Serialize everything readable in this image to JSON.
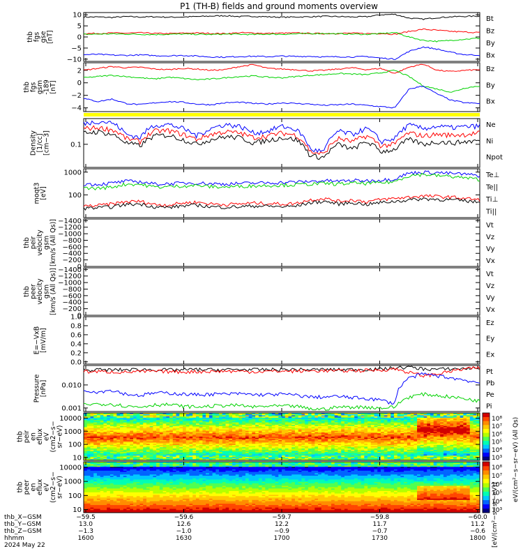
{
  "title": "P1 (TH-B) fields and ground moments overview",
  "colors": {
    "black": "#000000",
    "red": "#ff0000",
    "green": "#00d200",
    "blue": "#0000ff",
    "yellow": "#ffff00"
  },
  "chart_data": [
    {
      "type": "line",
      "panel": "fgs-gse",
      "ylabel": [
        "thb",
        "fgs",
        "gse",
        "[nT]"
      ],
      "ylim": [
        -11,
        11
      ],
      "yticks": [
        "10",
        "5",
        "0",
        "−5",
        "−10"
      ],
      "series": [
        {
          "name": "Bt",
          "color": "black",
          "values": [
            9,
            9,
            8.8,
            9.2,
            9,
            9.1,
            8.9,
            9,
            9.2,
            9.4,
            9.6,
            9.2,
            9.3,
            9.1,
            8.9,
            9,
            9.1,
            9.3,
            9.2,
            9,
            9.1,
            10,
            10.2,
            8.5,
            8,
            8.7,
            9.1,
            9.3,
            9.4
          ]
        },
        {
          "name": "Bz",
          "color": "red",
          "values": [
            1.5,
            1.6,
            1.8,
            1.7,
            1.9,
            1.6,
            1.5,
            1.7,
            1.8,
            1.6,
            1.5,
            1.9,
            1.8,
            1.6,
            1.7,
            1.8,
            1.6,
            1.5,
            1.6,
            1.7,
            1.5,
            1.6,
            1.2,
            2.5,
            3.5,
            3,
            2.5,
            2.2,
            2
          ]
        },
        {
          "name": "By",
          "color": "green",
          "values": [
            1.2,
            1.3,
            1.4,
            1.3,
            1.2,
            1.1,
            1.2,
            1.3,
            1.2,
            1.1,
            1.3,
            1.2,
            1.1,
            1.3,
            1.2,
            1.4,
            1.5,
            1.6,
            1.4,
            1.3,
            1.2,
            1.5,
            2,
            0,
            -1.5,
            -2,
            -1.5,
            -1,
            -0.5
          ]
        },
        {
          "name": "Bx",
          "color": "blue",
          "values": [
            -8,
            -7.8,
            -8.2,
            -8.3,
            -8.1,
            -8.4,
            -8.5,
            -8.3,
            -8.6,
            -9,
            -9.1,
            -8.8,
            -8.7,
            -8.9,
            -8.6,
            -8.8,
            -8.7,
            -9,
            -8.9,
            -9,
            -8.8,
            -9.5,
            -10,
            -6.5,
            -4.5,
            -5.5,
            -7,
            -8,
            -8.2
          ]
        }
      ]
    },
    {
      "type": "line",
      "panel": "fgs-gsm",
      "ylabel": [
        "thb",
        "fgs",
        "gsm",
        "-189",
        "[nT]"
      ],
      "ylim": [
        -4.6,
        3.2
      ],
      "yticks": [
        "2",
        "0",
        "−2",
        "−4"
      ],
      "series": [
        {
          "name": "Bz",
          "color": "red",
          "values": [
            2,
            2.3,
            2.6,
            2.4,
            2.5,
            2.2,
            2.1,
            2.3,
            2.2,
            2.0,
            2.1,
            2.6,
            2.9,
            2.3,
            2.2,
            2.1,
            1.9,
            2.0,
            2.2,
            2.4,
            2.1,
            2.3,
            1.5,
            2.5,
            3.0,
            2.0,
            1.8,
            2.0,
            2.1
          ]
        },
        {
          "name": "By",
          "color": "green",
          "values": [
            0.8,
            1.0,
            1.2,
            1.0,
            0.8,
            0.6,
            0.9,
            0.7,
            0.5,
            0.6,
            0.8,
            1.0,
            1.1,
            0.9,
            0.8,
            1.0,
            1.2,
            1.3,
            1.5,
            1.4,
            1.3,
            1.6,
            2.0,
            1.0,
            -0.5,
            -1.0,
            -1.5,
            -0.8,
            -0.5
          ]
        },
        {
          "name": "Bx",
          "color": "blue",
          "values": [
            -2.5,
            -3.0,
            -2.6,
            -3.3,
            -3.5,
            -3.2,
            -3.0,
            -3.1,
            -3.4,
            -3.5,
            -3.2,
            -3.1,
            -3.3,
            -3.4,
            -3.2,
            -3.3,
            -3.4,
            -3.6,
            -3.5,
            -3.4,
            -3.6,
            -3.8,
            -4.0,
            -1.0,
            -0.5,
            -1.8,
            -2.8,
            -3.2,
            -3.3
          ]
        }
      ]
    },
    {
      "type": "line",
      "panel": "density",
      "ylabel": [
        "Density",
        "[1/cc]",
        "[cm−3]"
      ],
      "ylog": true,
      "ylim": [
        0.02,
        0.6
      ],
      "yticks": [
        "0.1"
      ],
      "series": [
        {
          "name": "Ne",
          "color": "red",
          "values": [
            0.3,
            0.32,
            0.28,
            0.15,
            0.12,
            0.25,
            0.26,
            0.2,
            0.14,
            0.2,
            0.24,
            0.22,
            0.16,
            0.18,
            0.22,
            0.19,
            0.06,
            0.05,
            0.15,
            0.12,
            0.18,
            0.09,
            0.1,
            0.22,
            0.18,
            0.2,
            0.19,
            0.2,
            0.22
          ]
        },
        {
          "name": "Ni",
          "color": "black",
          "values": [
            0.22,
            0.24,
            0.2,
            0.11,
            0.09,
            0.18,
            0.19,
            0.14,
            0.1,
            0.14,
            0.17,
            0.16,
            0.11,
            0.13,
            0.16,
            0.14,
            0.045,
            0.04,
            0.1,
            0.07,
            0.12,
            0.06,
            0.07,
            0.14,
            0.1,
            0.12,
            0.11,
            0.12,
            0.13
          ]
        },
        {
          "name": "Npot",
          "color": "blue",
          "values": [
            0.42,
            0.5,
            0.45,
            0.2,
            0.16,
            0.38,
            0.4,
            0.3,
            0.18,
            0.3,
            0.4,
            0.35,
            0.22,
            0.25,
            0.35,
            0.28,
            0.07,
            0.06,
            0.25,
            0.2,
            0.3,
            0.12,
            0.15,
            0.38,
            0.3,
            0.35,
            0.32,
            0.34,
            0.36
          ]
        }
      ]
    },
    {
      "type": "line",
      "panel": "temperature",
      "ylabel": [
        "moqt3",
        "[eV]"
      ],
      "ylog": true,
      "ylim": [
        10,
        1400
      ],
      "yticks": [
        "1000",
        "100"
      ],
      "series": [
        {
          "name": "Te⊥",
          "color": "red",
          "values": [
            32,
            34,
            40,
            50,
            52,
            38,
            36,
            44,
            48,
            40,
            38,
            40,
            44,
            42,
            40,
            42,
            60,
            70,
            52,
            60,
            50,
            62,
            70,
            80,
            90,
            85,
            80,
            70,
            60
          ]
        },
        {
          "name": "Te||",
          "color": "black",
          "values": [
            26,
            27,
            30,
            38,
            40,
            30,
            28,
            33,
            36,
            30,
            29,
            30,
            33,
            32,
            30,
            32,
            45,
            52,
            40,
            46,
            38,
            46,
            52,
            60,
            68,
            64,
            60,
            55,
            48
          ]
        },
        {
          "name": "Ti⊥",
          "color": "blue",
          "values": [
            300,
            290,
            330,
            400,
            380,
            300,
            310,
            330,
            340,
            310,
            300,
            320,
            330,
            340,
            350,
            370,
            390,
            420,
            400,
            430,
            420,
            450,
            500,
            900,
            1000,
            950,
            880,
            800,
            700
          ]
        },
        {
          "name": "Ti||",
          "color": "green",
          "values": [
            200,
            195,
            220,
            300,
            290,
            220,
            230,
            250,
            260,
            230,
            220,
            240,
            250,
            260,
            270,
            280,
            300,
            320,
            300,
            330,
            320,
            340,
            380,
            700,
            800,
            700,
            650,
            550,
            480
          ]
        }
      ]
    },
    {
      "type": "line",
      "panel": "peir-velocity",
      "ylabel": [
        "thb",
        "peir",
        "velocity",
        "gsm",
        "[km/s (All Qs)]"
      ],
      "ylim": [
        0,
        -1450
      ],
      "yticks": [
        "0",
        "−200",
        "−400",
        "−600",
        "−800",
        "−1000",
        "−1200",
        "−1400"
      ],
      "legend": [
        "Vt",
        "Vz",
        "Vy",
        "Vx"
      ]
    },
    {
      "type": "line",
      "panel": "peer-velocity",
      "ylabel": [
        "thb",
        "peer",
        "velocity",
        "gsm",
        "[km/s (All Qs)]"
      ],
      "ylim": [
        0,
        -1450
      ],
      "yticks": [
        "0",
        "−200",
        "−400",
        "−600",
        "−800",
        "−1000",
        "−1200",
        "−1400"
      ],
      "legend": [
        "Vt",
        "Vz",
        "Vy",
        "Vx"
      ]
    },
    {
      "type": "line",
      "panel": "efield",
      "ylabel": [
        "E=−VxB",
        "[mV/m]"
      ],
      "ylim": [
        -0.05,
        1.0
      ],
      "yticks": [
        "1.0",
        "0.8",
        "0.6",
        "0.4",
        "0.2",
        "0.0"
      ],
      "legend": [
        "Ez",
        "Ey",
        "Ex"
      ]
    },
    {
      "type": "line",
      "panel": "pressure",
      "ylabel": [
        "Pressure",
        "[nPa]"
      ],
      "ylog": true,
      "ylim": [
        0.0007,
        0.07
      ],
      "yticks": [
        "0.010",
        "0.001"
      ],
      "series": [
        {
          "name": "Pt",
          "color": "black",
          "values": [
            0.045,
            0.046,
            0.045,
            0.046,
            0.047,
            0.046,
            0.045,
            0.046,
            0.047,
            0.046,
            0.046,
            0.047,
            0.046,
            0.046,
            0.047,
            0.047,
            0.046,
            0.047,
            0.046,
            0.047,
            0.048,
            0.048,
            0.055,
            0.06,
            0.05,
            0.048,
            0.05,
            0.052,
            0.055
          ]
        },
        {
          "name": "Pb",
          "color": "red",
          "values": [
            0.038,
            0.038,
            0.037,
            0.036,
            0.038,
            0.039,
            0.038,
            0.037,
            0.038,
            0.039,
            0.04,
            0.039,
            0.038,
            0.039,
            0.04,
            0.04,
            0.041,
            0.042,
            0.041,
            0.042,
            0.043,
            0.045,
            0.05,
            0.035,
            0.025,
            0.03,
            0.04,
            0.05,
            0.055
          ]
        },
        {
          "name": "Pe",
          "color": "green",
          "values": [
            0.0014,
            0.0015,
            0.0015,
            0.0012,
            0.0011,
            0.0014,
            0.0014,
            0.0012,
            0.0011,
            0.0012,
            0.0013,
            0.0013,
            0.0011,
            0.0012,
            0.0012,
            0.0012,
            0.0009,
            0.0009,
            0.0011,
            0.0011,
            0.0011,
            0.001,
            0.0011,
            0.003,
            0.004,
            0.0035,
            0.003,
            0.0025,
            0.002
          ]
        },
        {
          "name": "Pi",
          "color": "blue",
          "values": [
            0.006,
            0.005,
            0.006,
            0.004,
            0.0035,
            0.0045,
            0.0045,
            0.004,
            0.0038,
            0.004,
            0.004,
            0.0042,
            0.0038,
            0.0038,
            0.004,
            0.0036,
            0.003,
            0.003,
            0.0032,
            0.0028,
            0.0026,
            0.0022,
            0.0015,
            0.02,
            0.03,
            0.025,
            0.02,
            0.016,
            0.012
          ]
        }
      ]
    },
    {
      "type": "heatmap",
      "panel": "peir-en-eflux",
      "ylabel": [
        "thb",
        "peir",
        "en",
        "eflux",
        "eV",
        "(cm2−s−",
        "sr−eV)"
      ],
      "ylog": true,
      "ylim": [
        6,
        25000
      ],
      "yticks": [
        "10000",
        "1000",
        "100",
        "10"
      ],
      "colorbar_ticks": [
        "10⁸",
        "10⁷",
        "10⁶",
        "10⁵",
        "10⁴",
        "10³"
      ]
    },
    {
      "type": "heatmap",
      "panel": "peer-en-eflux",
      "ylabel": [
        "thb",
        "peer",
        "en",
        "eflux",
        "eV",
        "(cm2−s−",
        "sr−eV)"
      ],
      "ylog": true,
      "ylim": [
        6,
        25000
      ],
      "yticks": [
        "10000",
        "1000",
        "100",
        "10"
      ],
      "colorbar_ticks": [
        "10⁸",
        "10⁷",
        "10⁶",
        "10⁵",
        "10⁴",
        "10³"
      ]
    }
  ],
  "colorbar_label": "[eV/(cm²−s−sr−eV)]",
  "colorbar_label_2": "eV/(cm²−s−sr−eV) (All Qs)",
  "axis_rows": [
    {
      "label": "thb_X−GSM",
      "values": [
        "−59.5",
        "−59.6",
        "−59.7",
        "−59.8",
        "−60.0"
      ]
    },
    {
      "label": "thb_Y−GSM",
      "values": [
        "13.0",
        "12.6",
        "12.2",
        "11.7",
        "11.2"
      ]
    },
    {
      "label": "thb_Z−GSM",
      "values": [
        "−1.3",
        "−1.0",
        "−0.9",
        "−0.7",
        "−0.6"
      ]
    },
    {
      "label": "hhmm",
      "values": [
        "1600",
        "1630",
        "1700",
        "1730",
        "1800"
      ]
    }
  ],
  "date": "2024 May 22"
}
